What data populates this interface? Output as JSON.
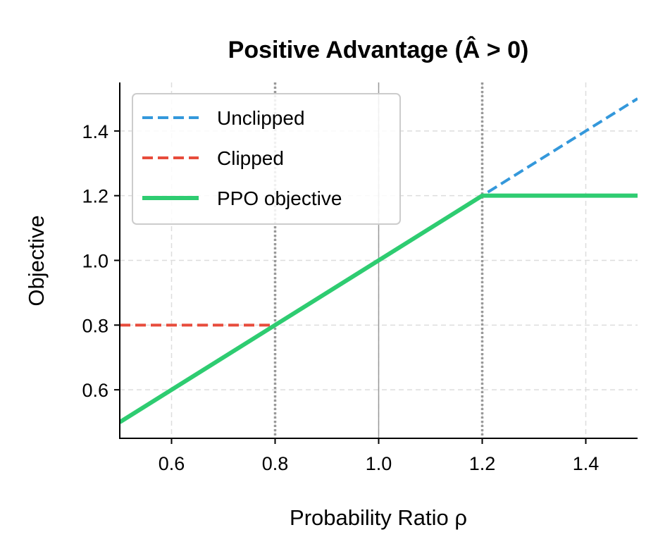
{
  "chart_data": {
    "type": "line",
    "title": "Positive Advantage (Â > 0)",
    "xlabel": "Probability Ratio ρ",
    "ylabel": "Objective",
    "xlim": [
      0.5,
      1.5
    ],
    "ylim": [
      0.45,
      1.55
    ],
    "xticks": [
      0.6,
      0.8,
      1.0,
      1.2,
      1.4
    ],
    "xtick_labels": [
      "0.6",
      "0.8",
      "1.0",
      "1.2",
      "1.4"
    ],
    "yticks": [
      0.6,
      0.8,
      1.0,
      1.2,
      1.4
    ],
    "ytick_labels": [
      "0.6",
      "0.8",
      "1.0",
      "1.2",
      "1.4"
    ],
    "grid": true,
    "legend_position": "top-left",
    "vertical_lines": [
      {
        "x": 0.8,
        "style": "dotted",
        "color": "#999999"
      },
      {
        "x": 1.0,
        "style": "solid",
        "color": "#999999"
      },
      {
        "x": 1.2,
        "style": "dotted",
        "color": "#999999"
      }
    ],
    "series": [
      {
        "name": "Unclipped",
        "color": "#3498db",
        "style": "dashed",
        "x": [
          0.5,
          1.5
        ],
        "y": [
          0.5,
          1.5
        ]
      },
      {
        "name": "Clipped",
        "color": "#e74c3c",
        "style": "dashed",
        "x": [
          0.5,
          0.8,
          1.2,
          1.5
        ],
        "y": [
          0.8,
          0.8,
          1.2,
          1.2
        ]
      },
      {
        "name": "PPO objective",
        "color": "#2ecc71",
        "style": "solid",
        "x": [
          0.5,
          1.2,
          1.5
        ],
        "y": [
          0.5,
          1.2,
          1.2
        ]
      }
    ]
  }
}
